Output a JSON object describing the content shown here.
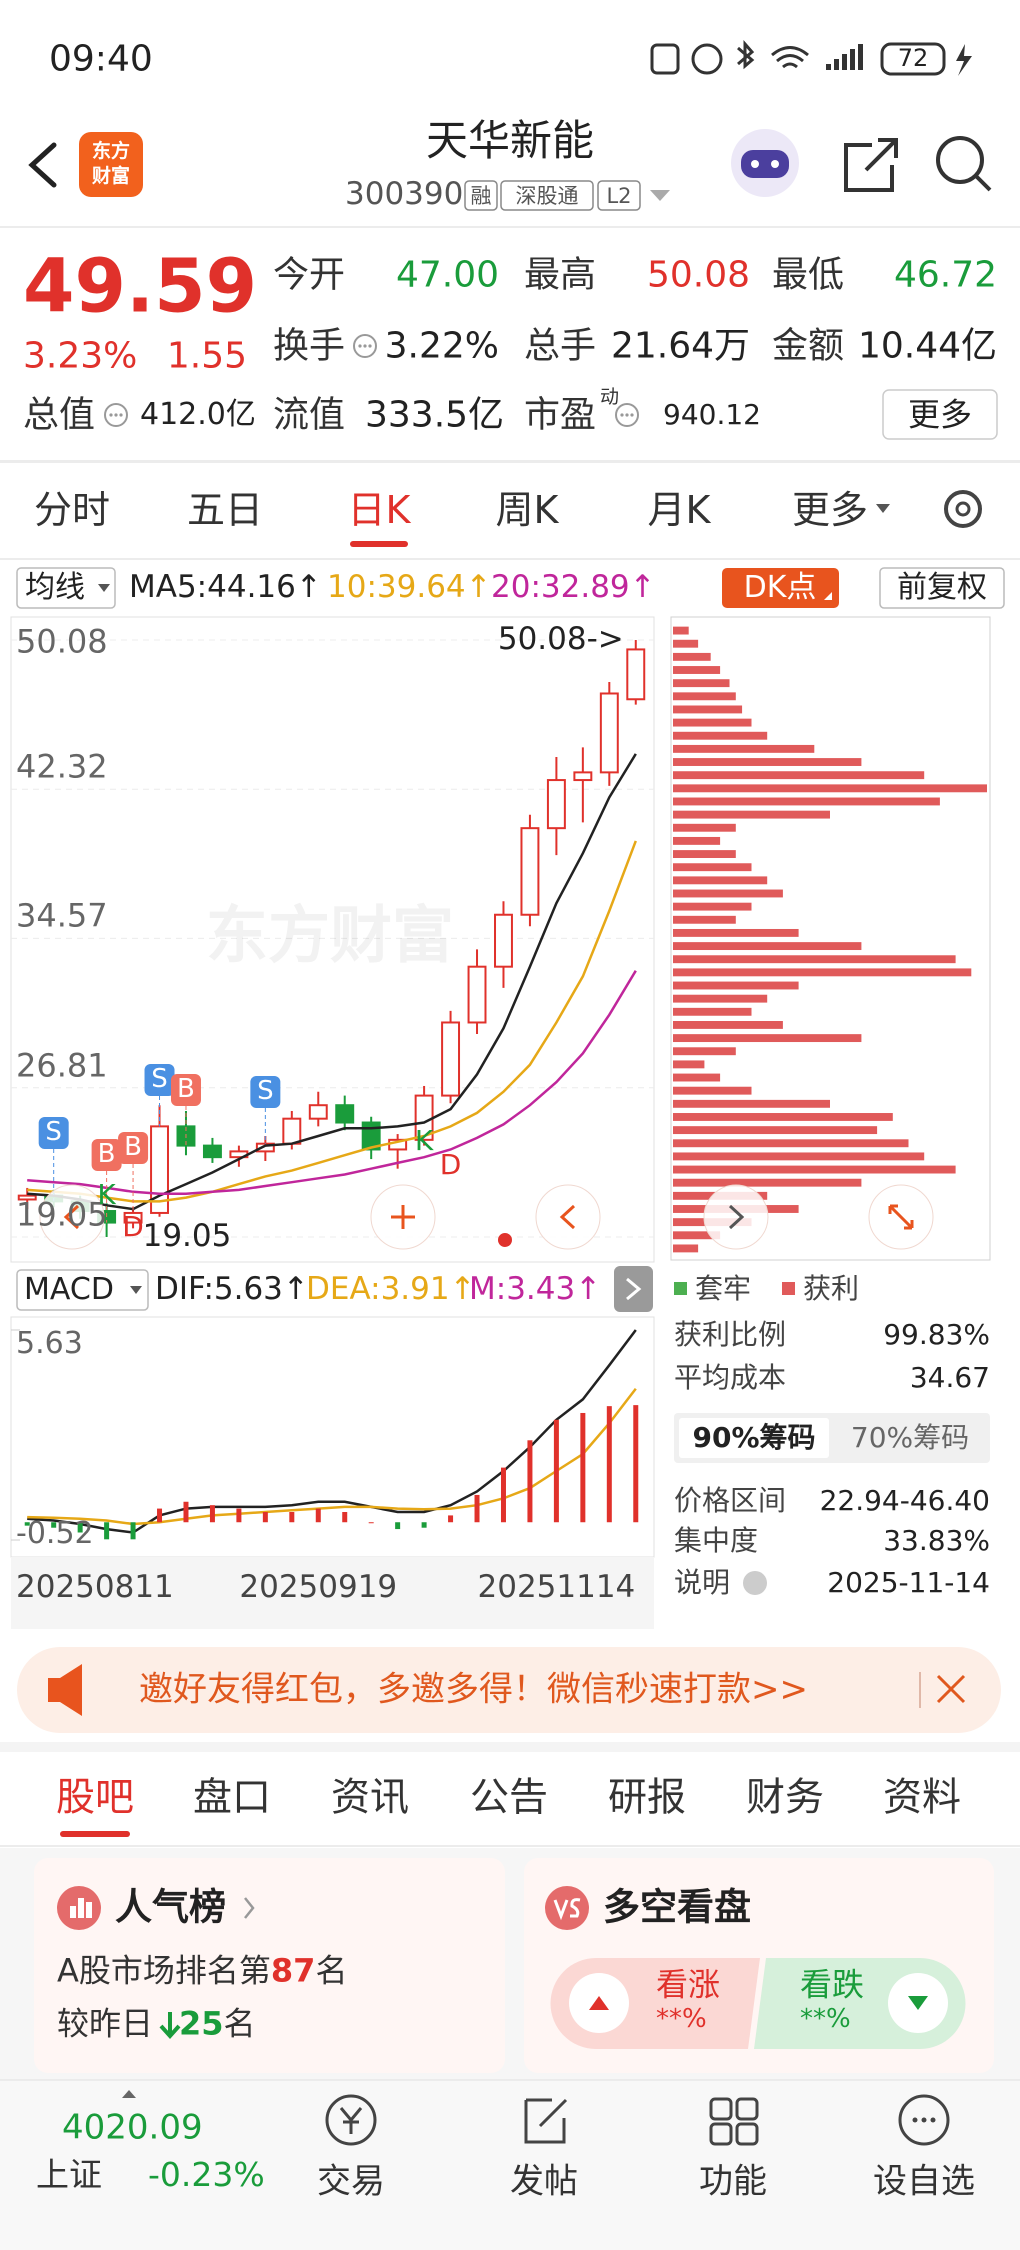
{
  "status_bar": {
    "time": "09:40",
    "battery": "72"
  },
  "header": {
    "logo": [
      "东方",
      "财富"
    ],
    "title": "天华新能",
    "code": "300390",
    "badges": [
      "融",
      "深股通",
      "L2"
    ]
  },
  "quote": {
    "price": "49.59",
    "change_pct": "3.23%",
    "change": "1.55",
    "color": "#e0312b",
    "rows": [
      [
        {
          "label": "今开",
          "value": "47.00",
          "color": "#1a9c3b"
        },
        {
          "label": "最高",
          "value": "50.08",
          "color": "#e0312b"
        },
        {
          "label": "最低",
          "value": "46.72",
          "color": "#1a9c3b"
        }
      ],
      [
        {
          "label": "换手",
          "value": "3.22%",
          "info": true
        },
        {
          "label": "总手",
          "value": "21.64万"
        },
        {
          "label": "金额",
          "value": "10.44亿"
        }
      ],
      [
        {
          "label": "总值",
          "value": "412.0亿",
          "info": true
        },
        {
          "label": "流值",
          "value": "333.5亿"
        },
        {
          "label": "市盈",
          "sup": "动",
          "value": "940.12",
          "info": true
        }
      ]
    ],
    "more": "更多"
  },
  "period_tabs": [
    "分时",
    "五日",
    "日K",
    "周K",
    "月K",
    "更多"
  ],
  "ma_selector": "均线",
  "dk_button": "DK点",
  "adjust_button": "前复权",
  "macd_selector": "MACD",
  "chart_data": [
    {
      "type": "candlestick",
      "watermark": "东方财富",
      "open": [
        21.0,
        21.2,
        20.9,
        20.4,
        19.8,
        20.3,
        24.8,
        23.8,
        23.2,
        23.5,
        23.9,
        25.2,
        25.9,
        25.0,
        23.6,
        24.1,
        26.4,
        30.2,
        33.1,
        35.8,
        40.3,
        42.8,
        43.2,
        47.0
      ],
      "high": [
        21.6,
        21.5,
        21.2,
        20.8,
        20.6,
        25.9,
        25.6,
        24.2,
        23.8,
        24.3,
        25.6,
        26.6,
        26.4,
        25.3,
        24.4,
        26.9,
        30.8,
        34.0,
        36.5,
        41.0,
        44.0,
        44.5,
        47.9,
        50.08
      ],
      "low": [
        20.5,
        20.6,
        20.0,
        19.05,
        19.5,
        20.1,
        23.3,
        22.9,
        22.7,
        23.0,
        23.6,
        24.8,
        24.6,
        23.1,
        22.6,
        23.8,
        26.0,
        29.6,
        32.0,
        35.2,
        38.9,
        40.6,
        42.5,
        46.72
      ],
      "close": [
        21.2,
        20.9,
        20.4,
        19.8,
        20.3,
        24.8,
        23.8,
        23.2,
        23.5,
        23.9,
        25.2,
        25.9,
        25.0,
        23.6,
        24.1,
        26.4,
        30.2,
        33.1,
        35.8,
        40.3,
        42.8,
        43.2,
        47.3,
        49.59
      ],
      "up_color": "#e0312b",
      "down_color": "#1a9c3b",
      "series": [
        {
          "name": "MA5:44.16↑",
          "color": "#222222",
          "values": [
            21.3,
            21.2,
            21.0,
            20.7,
            20.5,
            21.2,
            21.8,
            22.4,
            23.1,
            23.8,
            23.9,
            24.3,
            24.7,
            24.7,
            24.8,
            25.0,
            25.7,
            27.5,
            29.9,
            33.1,
            36.4,
            39.0,
            41.9,
            44.16
          ]
        },
        {
          "name": "10:39.64↑",
          "color": "#e6a817",
          "values": [
            21.5,
            21.4,
            21.3,
            21.1,
            20.9,
            20.9,
            21.1,
            21.4,
            21.8,
            22.2,
            22.5,
            22.9,
            23.3,
            23.7,
            24.0,
            24.3,
            24.8,
            25.5,
            26.6,
            28.0,
            30.2,
            32.6,
            36.0,
            39.64
          ]
        },
        {
          "name": "20:32.89↑",
          "color": "#c0269b",
          "values": [
            22.0,
            21.9,
            21.8,
            21.6,
            21.4,
            21.3,
            21.3,
            21.4,
            21.5,
            21.7,
            21.9,
            22.1,
            22.3,
            22.6,
            22.9,
            23.2,
            23.6,
            24.2,
            24.9,
            25.9,
            27.1,
            28.6,
            30.6,
            32.89
          ]
        }
      ],
      "ylim": [
        19.05,
        50.08
      ],
      "yticks": [
        50.08,
        42.32,
        34.57,
        26.81,
        19.05
      ],
      "grid": true,
      "high_label": "50.08->",
      "low_label": "19.05",
      "signals": [
        "S",
        "K",
        "D",
        "B",
        "B",
        "S",
        "B",
        "S",
        "K",
        "D"
      ]
    },
    {
      "type": "combo",
      "categories": [
        "20250811",
        null,
        null,
        null,
        null,
        null,
        null,
        null,
        null,
        null,
        null,
        "20250919",
        null,
        null,
        null,
        null,
        null,
        null,
        null,
        null,
        "20251114",
        null,
        null,
        null
      ],
      "series": [
        {
          "name": "DIF:5.63↑",
          "type": "line",
          "color": "#222222",
          "values": [
            0.1,
            0.05,
            -0.05,
            -0.2,
            -0.3,
            0.2,
            0.4,
            0.45,
            0.45,
            0.45,
            0.5,
            0.6,
            0.6,
            0.45,
            0.3,
            0.3,
            0.5,
            0.9,
            1.5,
            2.2,
            3.0,
            3.6,
            4.6,
            5.63
          ]
        },
        {
          "name": "DEA:3.91↑",
          "type": "line",
          "color": "#e6a817",
          "values": [
            0.15,
            0.13,
            0.1,
            0.05,
            -0.05,
            0.0,
            0.1,
            0.2,
            0.25,
            0.3,
            0.35,
            0.4,
            0.45,
            0.45,
            0.4,
            0.38,
            0.4,
            0.5,
            0.7,
            1.0,
            1.5,
            2.0,
            2.9,
            3.91
          ]
        },
        {
          "name": "M:3.43↑",
          "type": "bar",
          "color": "#c0269b",
          "up_color": "#e0312b",
          "down_color": "#1a9c3b",
          "values": [
            -0.1,
            -0.16,
            -0.3,
            -0.5,
            -0.5,
            0.4,
            0.6,
            0.5,
            0.4,
            0.3,
            0.3,
            0.4,
            0.3,
            0.0,
            -0.2,
            -0.16,
            0.2,
            0.8,
            1.6,
            2.4,
            3.0,
            3.2,
            3.4,
            3.43
          ]
        }
      ],
      "ylim": [
        -0.52,
        5.63
      ],
      "yticks": [
        5.63,
        -0.52
      ]
    },
    {
      "type": "bar",
      "orientation": "horizontal",
      "color": "#e05a5a",
      "values": [
        5,
        8,
        12,
        15,
        18,
        20,
        22,
        25,
        30,
        45,
        60,
        80,
        100,
        85,
        50,
        20,
        15,
        20,
        25,
        30,
        35,
        25,
        20,
        40,
        60,
        90,
        95,
        40,
        30,
        25,
        35,
        60,
        20,
        10,
        15,
        25,
        50,
        70,
        65,
        75,
        80,
        90,
        60,
        30,
        40,
        25,
        15,
        8
      ]
    }
  ],
  "chip_panel": {
    "legend": [
      {
        "name": "套牢",
        "color": "#4caf50"
      },
      {
        "name": "获利",
        "color": "#e05a5a"
      }
    ],
    "stats_top": [
      {
        "label": "获利比例",
        "value": "99.83%"
      },
      {
        "label": "平均成本",
        "value": "34.67"
      }
    ],
    "tabs": [
      "90%筹码",
      "70%筹码"
    ],
    "stats_bottom": [
      {
        "label": "价格区间",
        "value": "22.94-46.40"
      },
      {
        "label": "集中度",
        "value": "33.83%"
      },
      {
        "label": "说明",
        "value": "2025-11-14"
      }
    ]
  },
  "banner": "邀好友得红包，多邀多得！微信秒速打款>>",
  "section_tabs": [
    "股吧",
    "盘口",
    "资讯",
    "公告",
    "研报",
    "财务",
    "资料"
  ],
  "popularity": {
    "title": "人气榜",
    "rank_prefix": "A股市场排名第",
    "rank": "87",
    "rank_suffix": "名",
    "change_prefix": "较昨日",
    "change": "25",
    "change_suffix": "名"
  },
  "sentiment": {
    "title": "多空看盘",
    "up_label": "看涨",
    "up_value": "**%",
    "down_label": "看跌",
    "down_value": "**%"
  },
  "bottom_nav": {
    "index_value": "4020.09",
    "index_name": "上证",
    "index_change": "-0.23%",
    "items": [
      "交易",
      "发帖",
      "功能",
      "设自选"
    ]
  }
}
